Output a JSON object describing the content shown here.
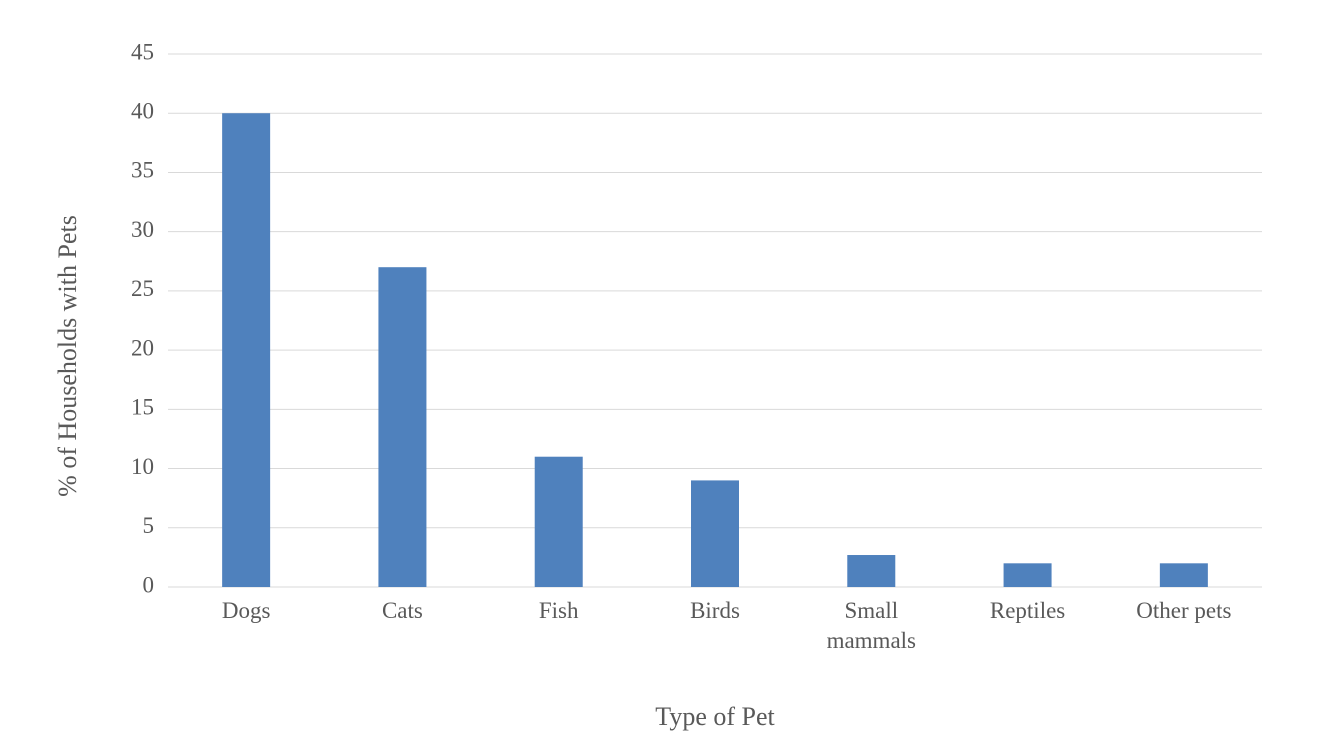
{
  "chart_data": {
    "type": "bar",
    "x_label": "Type of Pet",
    "y_label": "% of Households with Pets",
    "categories": [
      "Dogs",
      "Cats",
      "Fish",
      "Birds",
      "Small mammals",
      "Reptiles",
      "Other pets"
    ],
    "values": [
      40,
      27,
      11,
      9,
      2.7,
      2,
      2
    ],
    "color": "#4f81bd",
    "ylim": [
      0,
      45
    ],
    "yticks": [
      0,
      5,
      10,
      15,
      20,
      25,
      30,
      35,
      40,
      45
    ],
    "grid": true
  }
}
